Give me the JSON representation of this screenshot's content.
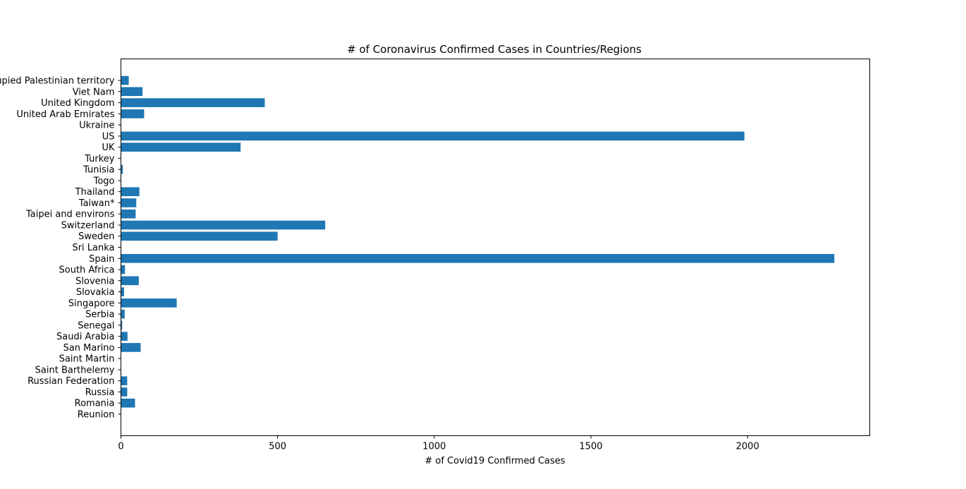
{
  "chart_data": {
    "type": "bar",
    "orientation": "horizontal",
    "title": "# of Coronavirus Confirmed Cases in Countries/Regions",
    "xlabel": "# of Covid19 Confirmed Cases",
    "ylabel": "",
    "xlim": [
      0,
      2390
    ],
    "xticks": [
      0,
      500,
      1000,
      1500,
      2000
    ],
    "bar_color": "#1f77b4",
    "grid": false,
    "categories": [
      "Reunion",
      "Romania",
      "Russia",
      "Russian Federation",
      "Saint Barthelemy",
      "Saint Martin",
      "San Marino",
      "Saudi Arabia",
      "Senegal",
      "Serbia",
      "Singapore",
      "Slovakia",
      "Slovenia",
      "South Africa",
      "Spain",
      "Sri Lanka",
      "Sweden",
      "Switzerland",
      "Taipei and environs",
      "Taiwan*",
      "Thailand",
      "Togo",
      "Tunisia",
      "Turkey",
      "UK",
      "US",
      "Ukraine",
      "United Arab Emirates",
      "United Kingdom",
      "Viet Nam",
      "occupied Palestinian territory"
    ],
    "values": [
      0,
      45,
      20,
      20,
      0,
      0,
      63,
      21,
      4,
      12,
      178,
      10,
      57,
      13,
      2277,
      1,
      500,
      652,
      47,
      49,
      59,
      1,
      6,
      1,
      382,
      1990,
      1,
      74,
      459,
      69,
      25
    ]
  }
}
